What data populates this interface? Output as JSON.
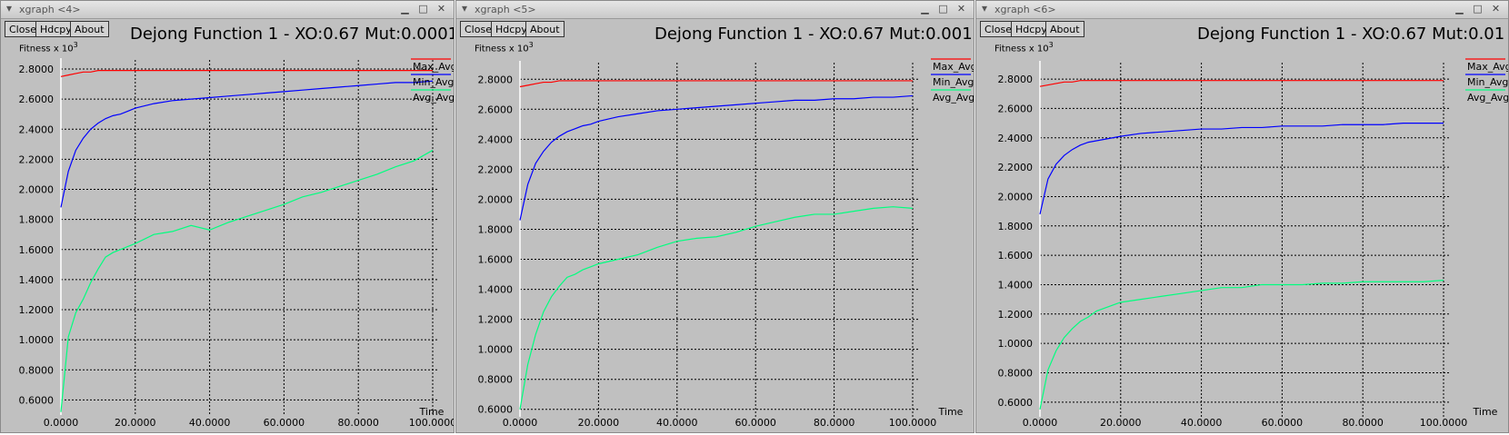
{
  "windows": [
    {
      "title": "xgraph <4>",
      "buttons": [
        "Close",
        "Hdcpy",
        "About"
      ],
      "chart_title": "Dejong Function 1 - XO:0.67 Mut:0.0001",
      "ylabel": "Fitness x 10",
      "ylabel_exp": "3",
      "xlabel": "Time"
    },
    {
      "title": "xgraph <5>",
      "buttons": [
        "Close",
        "Hdcpy",
        "About"
      ],
      "chart_title": "Dejong Function 1 - XO:0.67 Mut:0.001",
      "ylabel": "Fitness x 10",
      "ylabel_exp": "3",
      "xlabel": "Time"
    },
    {
      "title": "xgraph <6>",
      "buttons": [
        "Close",
        "Hdcpy",
        "About"
      ],
      "chart_title": "Dejong Function 1 - XO:0.67 Mut:0.01",
      "ylabel": "Fitness x 10",
      "ylabel_exp": "3",
      "xlabel": "Time"
    }
  ],
  "colors": {
    "max": "#ff0000",
    "min": "#0000ff",
    "avg": "#00ff7f",
    "grid": "#000000",
    "yaxis": "#ffffff"
  },
  "chart_data": [
    {
      "type": "line",
      "title": "Dejong Function 1 - XO:0.67 Mut:0.0001",
      "xlabel": "Time",
      "ylabel": "Fitness x 10^3",
      "xlim": [
        0,
        100
      ],
      "ylim": [
        0.5,
        2.8
      ],
      "x_ticks": [
        "0.0000",
        "20.0000",
        "40.0000",
        "60.0000",
        "80.0000",
        "100.0000"
      ],
      "y_ticks": [
        "0.6000",
        "0.8000",
        "1.0000",
        "1.2000",
        "1.4000",
        "1.6000",
        "1.8000",
        "2.0000",
        "2.2000",
        "2.4000",
        "2.6000",
        "2.8000"
      ],
      "grid": true,
      "legend_position": "right",
      "x": [
        0,
        2,
        4,
        6,
        8,
        10,
        12,
        14,
        16,
        18,
        20,
        25,
        30,
        35,
        40,
        45,
        50,
        55,
        60,
        65,
        70,
        75,
        80,
        85,
        90,
        95,
        100
      ],
      "series": [
        {
          "name": "Max_Avg",
          "values": [
            2.75,
            2.76,
            2.77,
            2.78,
            2.78,
            2.79,
            2.79,
            2.79,
            2.79,
            2.79,
            2.79,
            2.79,
            2.79,
            2.79,
            2.79,
            2.79,
            2.79,
            2.79,
            2.79,
            2.79,
            2.79,
            2.79,
            2.79,
            2.79,
            2.79,
            2.79,
            2.79
          ]
        },
        {
          "name": "Min_Avg",
          "values": [
            1.88,
            2.12,
            2.26,
            2.34,
            2.4,
            2.44,
            2.47,
            2.49,
            2.5,
            2.52,
            2.54,
            2.57,
            2.59,
            2.6,
            2.61,
            2.62,
            2.63,
            2.64,
            2.65,
            2.66,
            2.67,
            2.68,
            2.69,
            2.7,
            2.71,
            2.71,
            2.72
          ]
        },
        {
          "name": "Avg_Avg",
          "values": [
            0.52,
            1.02,
            1.18,
            1.27,
            1.38,
            1.47,
            1.55,
            1.58,
            1.6,
            1.62,
            1.64,
            1.7,
            1.72,
            1.76,
            1.73,
            1.78,
            1.82,
            1.86,
            1.9,
            1.95,
            1.98,
            2.02,
            2.06,
            2.1,
            2.15,
            2.19,
            2.26
          ]
        }
      ]
    },
    {
      "type": "line",
      "title": "Dejong Function 1 - XO:0.67 Mut:0.001",
      "xlabel": "Time",
      "ylabel": "Fitness x 10^3",
      "xlim": [
        0,
        100
      ],
      "ylim": [
        0.55,
        2.85
      ],
      "x_ticks": [
        "0.0000",
        "20.0000",
        "40.0000",
        "60.0000",
        "80.0000",
        "100.0000"
      ],
      "y_ticks": [
        "0.6000",
        "0.8000",
        "1.0000",
        "1.2000",
        "1.4000",
        "1.6000",
        "1.8000",
        "2.0000",
        "2.2000",
        "2.4000",
        "2.6000",
        "2.8000"
      ],
      "grid": true,
      "legend_position": "right",
      "x": [
        0,
        2,
        4,
        6,
        8,
        10,
        12,
        14,
        16,
        18,
        20,
        25,
        30,
        35,
        40,
        45,
        50,
        55,
        60,
        65,
        70,
        75,
        80,
        85,
        90,
        95,
        100
      ],
      "series": [
        {
          "name": "Max_Avg",
          "values": [
            2.75,
            2.76,
            2.77,
            2.78,
            2.78,
            2.79,
            2.79,
            2.79,
            2.79,
            2.79,
            2.79,
            2.79,
            2.79,
            2.79,
            2.79,
            2.79,
            2.79,
            2.79,
            2.79,
            2.79,
            2.79,
            2.79,
            2.79,
            2.79,
            2.79,
            2.79,
            2.79
          ]
        },
        {
          "name": "Min_Avg",
          "values": [
            1.86,
            2.1,
            2.24,
            2.32,
            2.38,
            2.42,
            2.45,
            2.47,
            2.49,
            2.5,
            2.52,
            2.55,
            2.57,
            2.59,
            2.6,
            2.61,
            2.62,
            2.63,
            2.64,
            2.65,
            2.66,
            2.66,
            2.67,
            2.67,
            2.68,
            2.68,
            2.69
          ]
        },
        {
          "name": "Avg_Avg",
          "values": [
            0.6,
            0.9,
            1.1,
            1.25,
            1.35,
            1.42,
            1.48,
            1.5,
            1.53,
            1.55,
            1.57,
            1.6,
            1.63,
            1.68,
            1.72,
            1.74,
            1.75,
            1.78,
            1.82,
            1.85,
            1.88,
            1.9,
            1.9,
            1.92,
            1.94,
            1.95,
            1.94
          ]
        }
      ]
    },
    {
      "type": "line",
      "title": "Dejong Function 1 - XO:0.67 Mut:0.01",
      "xlabel": "Time",
      "ylabel": "Fitness x 10^3",
      "xlim": [
        0,
        100
      ],
      "ylim": [
        0.5,
        2.85
      ],
      "x_ticks": [
        "0.0000",
        "20.0000",
        "40.0000",
        "60.0000",
        "80.0000",
        "100.0000"
      ],
      "y_ticks": [
        "0.6000",
        "0.8000",
        "1.0000",
        "1.2000",
        "1.4000",
        "1.6000",
        "1.8000",
        "2.0000",
        "2.2000",
        "2.4000",
        "2.6000",
        "2.8000"
      ],
      "grid": true,
      "legend_position": "right",
      "x": [
        0,
        2,
        4,
        6,
        8,
        10,
        12,
        14,
        16,
        18,
        20,
        25,
        30,
        35,
        40,
        45,
        50,
        55,
        60,
        65,
        70,
        75,
        80,
        85,
        90,
        95,
        100
      ],
      "series": [
        {
          "name": "Max_Avg",
          "values": [
            2.75,
            2.76,
            2.77,
            2.78,
            2.78,
            2.79,
            2.79,
            2.79,
            2.79,
            2.79,
            2.79,
            2.79,
            2.79,
            2.79,
            2.79,
            2.79,
            2.79,
            2.79,
            2.79,
            2.79,
            2.79,
            2.79,
            2.79,
            2.79,
            2.79,
            2.79,
            2.79
          ]
        },
        {
          "name": "Min_Avg",
          "values": [
            1.88,
            2.12,
            2.22,
            2.28,
            2.32,
            2.35,
            2.37,
            2.38,
            2.39,
            2.4,
            2.41,
            2.43,
            2.44,
            2.45,
            2.46,
            2.46,
            2.47,
            2.47,
            2.48,
            2.48,
            2.48,
            2.49,
            2.49,
            2.49,
            2.5,
            2.5,
            2.5
          ]
        },
        {
          "name": "Avg_Avg",
          "values": [
            0.55,
            0.82,
            0.95,
            1.04,
            1.1,
            1.15,
            1.18,
            1.22,
            1.24,
            1.26,
            1.28,
            1.3,
            1.32,
            1.34,
            1.36,
            1.38,
            1.38,
            1.4,
            1.4,
            1.4,
            1.41,
            1.41,
            1.42,
            1.42,
            1.42,
            1.42,
            1.43
          ]
        }
      ]
    }
  ]
}
